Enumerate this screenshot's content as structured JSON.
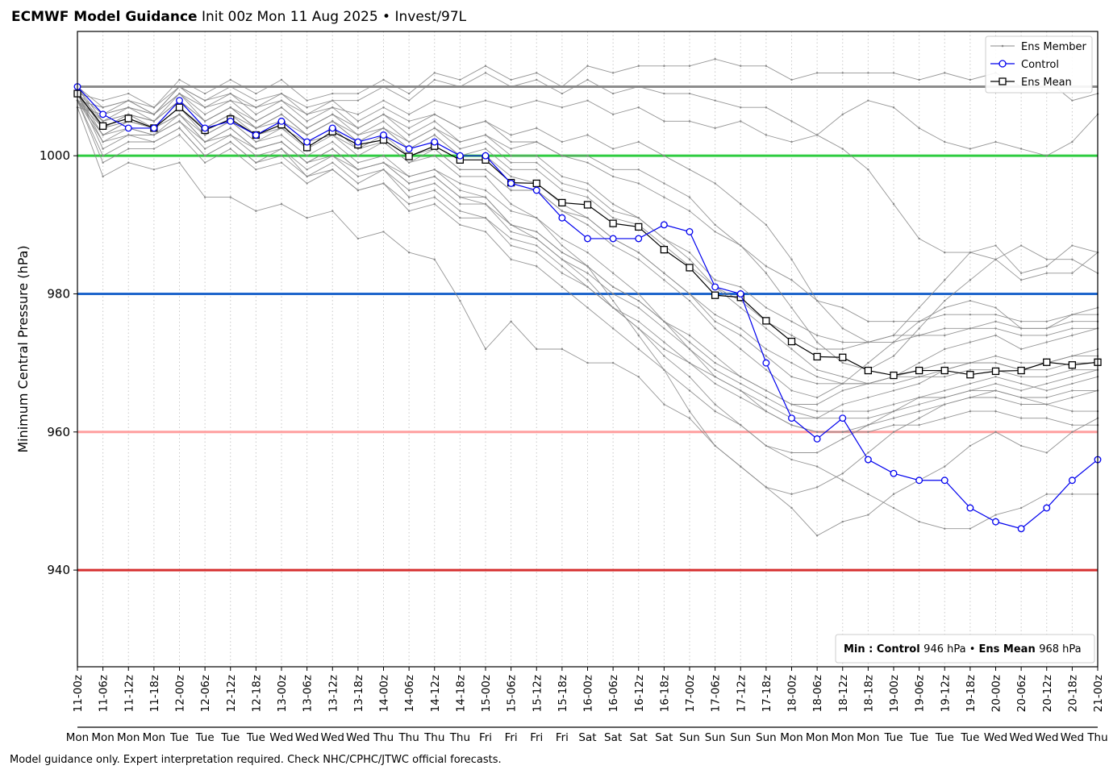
{
  "header": {
    "title_bold": "ECMWF Model Guidance",
    "title_rest": "Init 00z Mon 11 Aug 2025 • Invest/97L"
  },
  "footer": "Model guidance only. Expert interpretation required. Check NHC/CPHC/JTWC official forecasts.",
  "chart_data": {
    "type": "line",
    "ylabel": "Minimum Central Pressure (hPa)",
    "ylim": [
      926,
      1018
    ],
    "yticks": [
      940,
      960,
      980,
      1000
    ],
    "grid": "vertical dotted",
    "legend_position": "top-right",
    "legend": [
      "Ens Member",
      "Control",
      "Ens Mean"
    ],
    "categories": [
      "11-00z",
      "11-06z",
      "11-12z",
      "11-18z",
      "12-00z",
      "12-06z",
      "12-12z",
      "12-18z",
      "13-00z",
      "13-06z",
      "13-12z",
      "13-18z",
      "14-00z",
      "14-06z",
      "14-12z",
      "14-18z",
      "15-00z",
      "15-06z",
      "15-12z",
      "15-18z",
      "16-00z",
      "16-06z",
      "16-12z",
      "16-18z",
      "17-00z",
      "17-06z",
      "17-12z",
      "17-18z",
      "18-00z",
      "18-06z",
      "18-12z",
      "18-18z",
      "19-00z",
      "19-06z",
      "19-12z",
      "19-18z",
      "20-00z",
      "20-06z",
      "20-12z",
      "20-18z",
      "21-00z"
    ],
    "day_labels": [
      "Mon",
      "Mon",
      "Mon",
      "Mon",
      "Tue",
      "Tue",
      "Tue",
      "Tue",
      "Wed",
      "Wed",
      "Wed",
      "Wed",
      "Thu",
      "Thu",
      "Thu",
      "Thu",
      "Fri",
      "Fri",
      "Fri",
      "Fri",
      "Sat",
      "Sat",
      "Sat",
      "Sat",
      "Sun",
      "Sun",
      "Sun",
      "Sun",
      "Mon",
      "Mon",
      "Mon",
      "Mon",
      "Tue",
      "Tue",
      "Tue",
      "Tue",
      "Wed",
      "Wed",
      "Wed",
      "Wed",
      "Thu"
    ],
    "reference_lines": [
      {
        "value": 1010,
        "color": "#8c8c8c"
      },
      {
        "value": 1000,
        "color": "#2ecc40"
      },
      {
        "value": 980,
        "color": "#1f66cc"
      },
      {
        "value": 960,
        "color": "#ff9f9f"
      },
      {
        "value": 940,
        "color": "#d62f2f"
      }
    ],
    "colors": {
      "member": "#888888",
      "control": "#0000ee",
      "mean": "#000000"
    },
    "series": [
      {
        "name": "Control",
        "values": [
          1010,
          1006,
          1004,
          1004,
          1008,
          1004,
          1005,
          1003,
          1005,
          1002,
          1004,
          1002,
          1003,
          1001,
          1002,
          1000,
          1000,
          996,
          995,
          991,
          988,
          988,
          988,
          990,
          989,
          981,
          980,
          970,
          962,
          959,
          962,
          956,
          954,
          953,
          953,
          949,
          947,
          946,
          949,
          953,
          956
        ]
      },
      {
        "name": "Ens Mean",
        "values": [
          1009,
          1004.3,
          1005.4,
          1004,
          1007,
          1003.7,
          1005.3,
          1003,
          1004.5,
          1001.2,
          1003.5,
          1001.6,
          1002.3,
          999.9,
          1001.4,
          999.4,
          999.4,
          996.1,
          996,
          993.2,
          992.9,
          990.2,
          989.7,
          986.4,
          983.8,
          979.8,
          979.5,
          976.1,
          973.1,
          970.9,
          970.8,
          968.9,
          968.2,
          968.9,
          968.9,
          968.3,
          968.8,
          968.9,
          970.1,
          969.7,
          970.1
        ]
      }
    ],
    "ensemble_members": [
      [
        1009,
        1008,
        1009,
        1007,
        1011,
        1009,
        1011,
        1009,
        1011,
        1008,
        1009,
        1009,
        1011,
        1009,
        1012,
        1011,
        1013,
        1011,
        1012,
        1010,
        1013,
        1012,
        1013,
        1013,
        1013,
        1014,
        1013,
        1013,
        1011,
        1012,
        1012,
        1012,
        1012,
        1011,
        1012,
        1011,
        1012,
        1010,
        1011,
        1008,
        1009
      ],
      [
        1008,
        1007,
        1008,
        1006,
        1010,
        1008,
        1010,
        1008,
        1009,
        1007,
        1008,
        1008,
        1010,
        1008,
        1011,
        1010,
        1012,
        1010,
        1011,
        1009,
        1011,
        1009,
        1010,
        1009,
        1009,
        1008,
        1007,
        1007,
        1005,
        1003,
        1001,
        998,
        993,
        988,
        986,
        986,
        985,
        982,
        983,
        983,
        986
      ],
      [
        1007,
        1006,
        1007,
        1006,
        1009,
        1007,
        1008,
        1007,
        1008,
        1006,
        1007,
        1006,
        1008,
        1006,
        1008,
        1007,
        1008,
        1007,
        1008,
        1007,
        1008,
        1006,
        1007,
        1005,
        1005,
        1004,
        1005,
        1003,
        1002,
        1003,
        1006,
        1008,
        1007,
        1004,
        1002,
        1001,
        1002,
        1001,
        1000,
        1002,
        1006
      ],
      [
        1008,
        1005,
        1006,
        1005,
        1008,
        1005,
        1007,
        1005,
        1007,
        1004,
        1006,
        1004,
        1006,
        1004,
        1006,
        1004,
        1005,
        1003,
        1004,
        1002,
        1003,
        1001,
        1002,
        1000,
        998,
        996,
        993,
        990,
        985,
        979,
        975,
        973,
        974,
        978,
        982,
        986,
        987,
        983,
        984,
        987,
        986
      ],
      [
        1010,
        1004,
        1006,
        1004,
        1008,
        1004,
        1006,
        1004,
        1005,
        1003,
        1005,
        1003,
        1004,
        1002,
        1004,
        1002,
        1003,
        1001,
        1002,
        1000,
        1000,
        998,
        998,
        996,
        994,
        990,
        987,
        983,
        978,
        973,
        970,
        969,
        971,
        975,
        979,
        982,
        985,
        987,
        985,
        985,
        983
      ],
      [
        1009,
        1002,
        1004,
        1003,
        1006,
        1003,
        1005,
        1002,
        1004,
        1001,
        1003,
        1000,
        1002,
        999,
        1001,
        998,
        998,
        995,
        995,
        992,
        990,
        987,
        985,
        982,
        979,
        975,
        972,
        969,
        966,
        965,
        967,
        970,
        973,
        976,
        978,
        979,
        978,
        975,
        975,
        977,
        978
      ],
      [
        1009,
        1001,
        1003,
        1003,
        1005,
        1002,
        1003,
        1001,
        1002,
        999,
        1000,
        998,
        999,
        996,
        997,
        994,
        993,
        990,
        989,
        986,
        984,
        981,
        979,
        976,
        974,
        971,
        968,
        966,
        964,
        964,
        966,
        967,
        968,
        970,
        972,
        973,
        974,
        972,
        973,
        974,
        975
      ],
      [
        1008,
        1000,
        1002,
        1002,
        1004,
        1000,
        1002,
        999,
        1001,
        997,
        999,
        996,
        998,
        994,
        995,
        992,
        991,
        988,
        987,
        984,
        981,
        978,
        975,
        972,
        970,
        968,
        966,
        964,
        962,
        962,
        964,
        965,
        966,
        967,
        969,
        970,
        970,
        969,
        970,
        971,
        972
      ],
      [
        1008,
        999,
        1001,
        1001,
        1003,
        999,
        1001,
        998,
        999,
        996,
        998,
        995,
        996,
        992,
        993,
        990,
        989,
        985,
        984,
        981,
        978,
        975,
        972,
        969,
        966,
        963,
        961,
        958,
        957,
        957,
        959,
        961,
        963,
        965,
        966,
        967,
        968,
        967,
        966,
        967,
        968
      ],
      [
        1007,
        997,
        999,
        998,
        999,
        994,
        994,
        992,
        993,
        991,
        992,
        988,
        989,
        986,
        985,
        979,
        972,
        976,
        972,
        972,
        970,
        970,
        968,
        964,
        962,
        958,
        955,
        952,
        949,
        945,
        947,
        948,
        951,
        953,
        955,
        958,
        960,
        958,
        957,
        960,
        962
      ],
      [
        1009,
        1003,
        1005,
        1004,
        1006,
        1002,
        1004,
        1001,
        1002,
        999,
        1001,
        998,
        999,
        997,
        998,
        995,
        994,
        990,
        988,
        985,
        982,
        978,
        975,
        971,
        968,
        964,
        961,
        958,
        956,
        955,
        953,
        951,
        949,
        947,
        946,
        946,
        948,
        949,
        951,
        951,
        951
      ],
      [
        1010,
        1006,
        1007,
        1005,
        1008,
        1004,
        1006,
        1003,
        1004,
        1002,
        1003,
        1001,
        1002,
        999,
        1000,
        997,
        997,
        993,
        991,
        987,
        984,
        979,
        974,
        969,
        963,
        958,
        955,
        952,
        951,
        952,
        954,
        957,
        960,
        962,
        964,
        965,
        966,
        965,
        964,
        963,
        963
      ],
      [
        1008,
        1004,
        1005,
        1004,
        1007,
        1003,
        1005,
        1002,
        1003,
        1000,
        1002,
        999,
        1000,
        997,
        998,
        996,
        995,
        992,
        991,
        988,
        986,
        983,
        980,
        976,
        972,
        968,
        966,
        963,
        961,
        960,
        960,
        960,
        961,
        961,
        962,
        963,
        963,
        962,
        962,
        961,
        961
      ],
      [
        1009,
        1005,
        1006,
        1005,
        1008,
        1005,
        1007,
        1004,
        1006,
        1003,
        1005,
        1002,
        1004,
        1001,
        1003,
        1000,
        1001,
        998,
        998,
        995,
        994,
        991,
        990,
        987,
        984,
        981,
        979,
        976,
        974,
        972,
        972,
        973,
        974,
        974,
        975,
        975,
        976,
        975,
        975,
        976,
        976
      ],
      [
        1008,
        1003,
        1004,
        1003,
        1005,
        1001,
        1003,
        1000,
        1001,
        998,
        1000,
        997,
        998,
        995,
        996,
        993,
        993,
        989,
        988,
        985,
        983,
        980,
        978,
        975,
        972,
        969,
        967,
        965,
        963,
        962,
        962,
        962,
        963,
        964,
        965,
        966,
        967,
        966,
        967,
        968,
        969
      ],
      [
        1009,
        1004,
        1006,
        1005,
        1009,
        1006,
        1008,
        1005,
        1007,
        1004,
        1006,
        1003,
        1005,
        1002,
        1004,
        1001,
        1002,
        999,
        999,
        996,
        995,
        992,
        991,
        988,
        986,
        982,
        981,
        978,
        976,
        974,
        973,
        973,
        973,
        974,
        974,
        975,
        975,
        974,
        974,
        975,
        975
      ],
      [
        1008,
        1003,
        1005,
        1004,
        1007,
        1004,
        1005,
        1003,
        1005,
        1002,
        1004,
        1001,
        1003,
        1000,
        1001,
        998,
        998,
        995,
        995,
        992,
        991,
        988,
        986,
        983,
        980,
        976,
        974,
        971,
        968,
        967,
        967,
        967,
        968,
        969,
        970,
        970,
        971,
        970,
        970,
        971,
        971
      ],
      [
        1009,
        1006,
        1008,
        1006,
        1010,
        1007,
        1009,
        1006,
        1008,
        1005,
        1007,
        1004,
        1006,
        1003,
        1005,
        1002,
        1003,
        1000,
        1000,
        997,
        996,
        993,
        991,
        988,
        985,
        981,
        978,
        975,
        972,
        969,
        968,
        967,
        968,
        968,
        969,
        970,
        970,
        969,
        969,
        970,
        970
      ],
      [
        1010,
        1007,
        1008,
        1007,
        1010,
        1008,
        1009,
        1007,
        1009,
        1006,
        1008,
        1005,
        1007,
        1005,
        1006,
        1004,
        1005,
        1002,
        1002,
        1000,
        999,
        997,
        996,
        994,
        992,
        989,
        987,
        984,
        982,
        979,
        978,
        976,
        976,
        976,
        977,
        977,
        977,
        976,
        976,
        977,
        977
      ],
      [
        1008,
        1002,
        1003,
        1002,
        1004,
        1000,
        1002,
        999,
        1000,
        997,
        998,
        995,
        996,
        993,
        994,
        991,
        991,
        987,
        986,
        983,
        981,
        978,
        976,
        973,
        970,
        967,
        965,
        963,
        961,
        960,
        960,
        961,
        962,
        963,
        964,
        965,
        965,
        964,
        964,
        965,
        966
      ],
      [
        1009,
        1004,
        1005,
        1004,
        1006,
        1002,
        1004,
        1001,
        1002,
        999,
        1001,
        998,
        999,
        996,
        997,
        994,
        994,
        990,
        989,
        986,
        984,
        981,
        979,
        976,
        973,
        970,
        968,
        966,
        964,
        963,
        963,
        963,
        964,
        965,
        965,
        966,
        966,
        965,
        965,
        966,
        966
      ],
      [
        1010,
        1005,
        1007,
        1006,
        1009,
        1005,
        1007,
        1004,
        1006,
        1003,
        1005,
        1002,
        1004,
        1001,
        1003,
        1000,
        1000,
        997,
        996,
        993,
        991,
        988,
        986,
        983,
        980,
        977,
        975,
        972,
        970,
        968,
        967,
        967,
        967,
        968,
        968,
        969,
        969,
        968,
        968,
        969,
        969
      ]
    ]
  }
}
